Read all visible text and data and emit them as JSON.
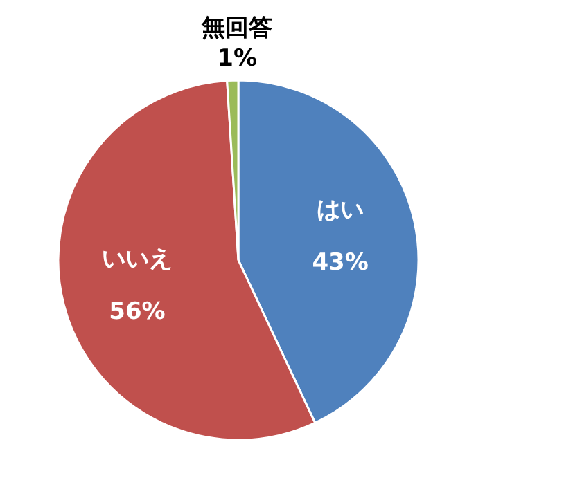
{
  "chart_data": {
    "type": "pie",
    "categories": [
      "はい",
      "いいえ",
      "無回答"
    ],
    "values": [
      43,
      56,
      1
    ],
    "colors": [
      "#4f81bd",
      "#c0504d",
      "#9bbb59"
    ],
    "value_labels": [
      "43%",
      "56%",
      "1%"
    ]
  }
}
